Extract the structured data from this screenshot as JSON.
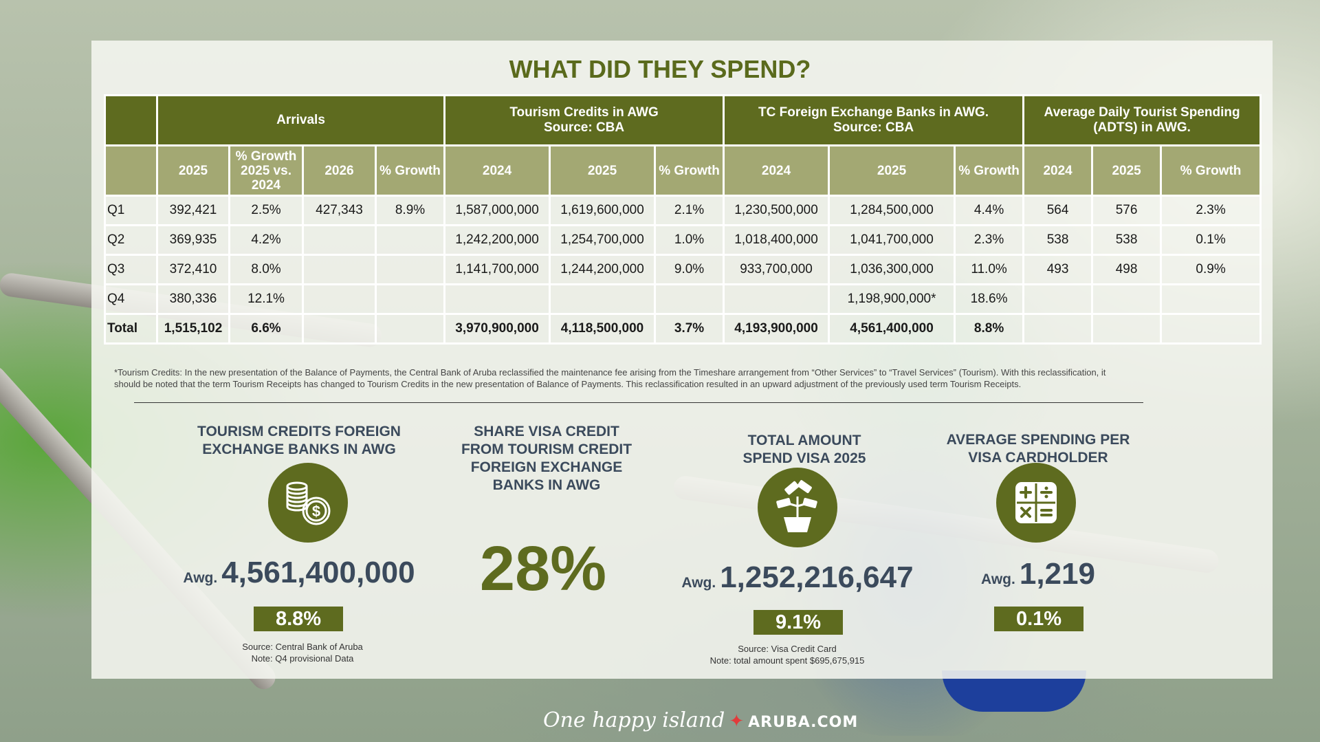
{
  "title": "WHAT DID THEY SPEND?",
  "table": {
    "group_headers": {
      "arrivals": "Arrivals",
      "tourism_credits": "Tourism Credits in AWG",
      "tourism_credits_src": "Source: CBA",
      "tc_fx": "TC Foreign Exchange Banks in AWG.",
      "tc_fx_src": "Source: CBA",
      "adts": "Average Daily Tourist Spending",
      "adts_2": "(ADTS) in AWG."
    },
    "sub_headers": {
      "a2025": "2025",
      "agrowth_1": "% Growth",
      "agrowth_2": "2025 vs.",
      "agrowth_3": "2024",
      "a2026": "2026",
      "agrowth2026": "% Growth",
      "tc2024": "2024",
      "tc2025": "2025",
      "tcgrowth": "% Growth",
      "fx2024": "2024",
      "fx2025": "2025",
      "fxgrowth": "% Growth",
      "ad2024": "2024",
      "ad2025": "2025",
      "adgrowth": "% Growth"
    },
    "rows": [
      [
        "Q1",
        "392,421",
        "2.5%",
        "427,343",
        "8.9%",
        "1,587,000,000",
        "1,619,600,000",
        "2.1%",
        "1,230,500,000",
        "1,284,500,000",
        "4.4%",
        "564",
        "576",
        "2.3%"
      ],
      [
        "Q2",
        "369,935",
        "4.2%",
        "",
        "",
        "1,242,200,000",
        "1,254,700,000",
        "1.0%",
        "1,018,400,000",
        "1,041,700,000",
        "2.3%",
        "538",
        "538",
        "0.1%"
      ],
      [
        "Q3",
        "372,410",
        "8.0%",
        "",
        "",
        "1,141,700,000",
        "1,244,200,000",
        "9.0%",
        "933,700,000",
        "1,036,300,000",
        "11.0%",
        "493",
        "498",
        "0.9%"
      ],
      [
        "Q4",
        "380,336",
        "12.1%",
        "",
        "",
        "",
        "",
        "",
        "",
        "1,198,900,000*",
        "18.6%",
        "",
        "",
        ""
      ],
      [
        "Total",
        "1,515,102",
        "6.6%",
        "",
        "",
        "3,970,900,000",
        "4,118,500,000",
        "3.7%",
        "4,193,900,000",
        "4,561,400,000",
        "8.8%",
        "",
        "",
        ""
      ]
    ]
  },
  "footnote_1": "*Tourism Credits: In the new presentation of the Balance of Payments, the Central Bank of Aruba reclassified the maintenance fee arising from the Timeshare arrangement from “Other Services” to “Travel Services” (Tourism). With this reclassification, it",
  "footnote_2": "should be noted that the term Tourism Receipts has changed to Tourism Credits in the new presentation of Balance of Payments. This reclassification resulted in an upward adjustment of the previously used term Tourism Receipts.",
  "kpis": {
    "tc_fx": {
      "title_1": "TOURISM CREDITS FOREIGN",
      "title_2": "EXCHANGE BANKS IN AWG",
      "icon": "coins-icon",
      "awg": "Awg.",
      "value": "4,561,400,000",
      "badge": "8.8%",
      "source_1": "Source: Central Bank of Aruba",
      "source_2": "Note: Q4 provisional Data"
    },
    "visa_share": {
      "title_1": "SHARE VISA CREDIT",
      "title_2": "FROM TOURISM CREDIT",
      "title_3": "FOREIGN EXCHANGE",
      "title_4": "BANKS IN AWG",
      "value": "28%"
    },
    "visa_total": {
      "title_1": "TOTAL AMOUNT",
      "title_2": "SPEND VISA 2025",
      "icon": "money-plant-icon",
      "awg": "Awg.",
      "value": "1,252,216,647",
      "badge": "9.1%",
      "source_1": "Source: Visa Credit Card",
      "source_2": "Note: total amount spent $695,675,915"
    },
    "visa_avg": {
      "title_1": "AVERAGE SPENDING PER",
      "title_2": "VISA CARDHOLDER",
      "icon": "calculator-icon",
      "awg": "Awg.",
      "value": "1,219",
      "badge": "0.1%"
    }
  },
  "brand": {
    "tagline": "One happy island",
    "domain": "ARUBA.COM"
  },
  "colors": {
    "olive": "#5e6b1f",
    "olive_light": "#a3a873",
    "title": "#5a6a1c",
    "kpi_text": "#3b4a5c"
  }
}
